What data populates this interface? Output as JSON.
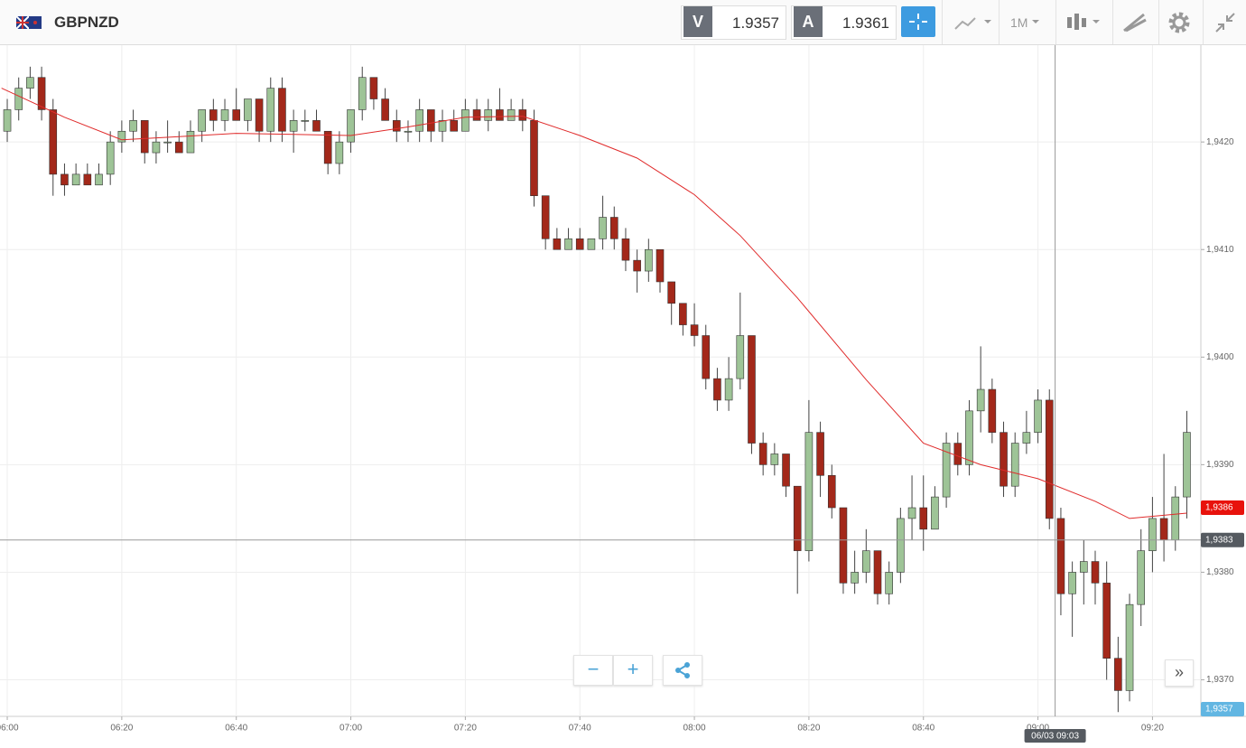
{
  "toolbar": {
    "symbol": "GBPNZD",
    "bid_label": "V",
    "bid": "1.9357",
    "ask_label": "A",
    "ask": "1.9361",
    "timeframe": "1M"
  },
  "chart_data": {
    "type": "candlestick",
    "xlim": [
      "05:58:44",
      "09:28:27"
    ],
    "xticks": [
      "06:00",
      "06:20",
      "06:40",
      "07:00",
      "07:20",
      "07:40",
      "08:00",
      "08:20",
      "08:40",
      "09:00",
      "09:20"
    ],
    "ylim": [
      1.93666,
      1.9429
    ],
    "yticks": [
      {
        "value": 1.937,
        "label": "1,9370"
      },
      {
        "value": 1.938,
        "label": "1,9380"
      },
      {
        "value": 1.939,
        "label": "1,9390"
      },
      {
        "value": 1.94,
        "label": "1,9400"
      },
      {
        "value": 1.941,
        "label": "1,9410"
      },
      {
        "value": 1.942,
        "label": "1,9420"
      }
    ],
    "grid": true,
    "up_color": "#9ec497",
    "down_color": "#a3281a",
    "ma_color": "#e02b2b",
    "x": [
      "06:00",
      "06:02",
      "06:04",
      "06:06",
      "06:08",
      "06:10",
      "06:12",
      "06:14",
      "06:16",
      "06:18",
      "06:20",
      "06:22",
      "06:24",
      "06:26",
      "06:28",
      "06:30",
      "06:32",
      "06:34",
      "06:36",
      "06:38",
      "06:40",
      "06:42",
      "06:44",
      "06:46",
      "06:48",
      "06:50",
      "06:52",
      "06:54",
      "06:56",
      "06:58",
      "07:00",
      "07:02",
      "07:04",
      "07:06",
      "07:08",
      "07:10",
      "07:12",
      "07:14",
      "07:16",
      "07:18",
      "07:20",
      "07:22",
      "07:24",
      "07:26",
      "07:28",
      "07:30",
      "07:32",
      "07:34",
      "07:36",
      "07:38",
      "07:40",
      "07:42",
      "07:44",
      "07:46",
      "07:48",
      "07:50",
      "07:52",
      "07:54",
      "07:56",
      "07:58",
      "08:00",
      "08:02",
      "08:04",
      "08:06",
      "08:08",
      "08:10",
      "08:12",
      "08:14",
      "08:16",
      "08:18",
      "08:20",
      "08:22",
      "08:24",
      "08:26",
      "08:28",
      "08:30",
      "08:32",
      "08:34",
      "08:36",
      "08:38",
      "08:40",
      "08:42",
      "08:44",
      "08:46",
      "08:48",
      "08:50",
      "08:52",
      "08:54",
      "08:56",
      "08:58",
      "09:00",
      "09:02",
      "09:04",
      "09:06",
      "09:08",
      "09:10",
      "09:12",
      "09:14",
      "09:16",
      "09:18",
      "09:20",
      "09:22",
      "09:24",
      "09:26"
    ],
    "candles": [
      [
        1.9421,
        1.9424,
        1.942,
        1.9423
      ],
      [
        1.9423,
        1.9426,
        1.9422,
        1.9425
      ],
      [
        1.9425,
        1.9427,
        1.9424,
        1.9426
      ],
      [
        1.9426,
        1.9427,
        1.9422,
        1.9423
      ],
      [
        1.9423,
        1.9424,
        1.9415,
        1.9417
      ],
      [
        1.9417,
        1.9418,
        1.9415,
        1.9416
      ],
      [
        1.9416,
        1.9418,
        1.9416,
        1.9417
      ],
      [
        1.9417,
        1.9418,
        1.9416,
        1.9416
      ],
      [
        1.9416,
        1.9418,
        1.9416,
        1.9417
      ],
      [
        1.9417,
        1.9421,
        1.9416,
        1.942
      ],
      [
        1.942,
        1.9422,
        1.9419,
        1.9421
      ],
      [
        1.9421,
        1.9423,
        1.942,
        1.9422
      ],
      [
        1.9422,
        1.9422,
        1.9418,
        1.9419
      ],
      [
        1.9419,
        1.9421,
        1.9418,
        1.942
      ],
      [
        1.942,
        1.9422,
        1.9419,
        1.942
      ],
      [
        1.942,
        1.9421,
        1.9419,
        1.9419
      ],
      [
        1.9419,
        1.9422,
        1.9419,
        1.9421
      ],
      [
        1.9421,
        1.9423,
        1.942,
        1.9423
      ],
      [
        1.9423,
        1.9424,
        1.9421,
        1.9422
      ],
      [
        1.9422,
        1.9424,
        1.9421,
        1.9423
      ],
      [
        1.9423,
        1.9425,
        1.9422,
        1.9422
      ],
      [
        1.9422,
        1.9424,
        1.9421,
        1.9424
      ],
      [
        1.9424,
        1.9424,
        1.942,
        1.9421
      ],
      [
        1.9421,
        1.9426,
        1.942,
        1.9425
      ],
      [
        1.9425,
        1.9426,
        1.942,
        1.9421
      ],
      [
        1.9421,
        1.9423,
        1.9419,
        1.9422
      ],
      [
        1.9422,
        1.9423,
        1.9421,
        1.9422
      ],
      [
        1.9422,
        1.9423,
        1.9421,
        1.9421
      ],
      [
        1.9421,
        1.9421,
        1.9417,
        1.9418
      ],
      [
        1.9418,
        1.9421,
        1.9417,
        1.942
      ],
      [
        1.942,
        1.9423,
        1.9419,
        1.9423
      ],
      [
        1.9423,
        1.9427,
        1.9422,
        1.9426
      ],
      [
        1.9426,
        1.9426,
        1.9423,
        1.9424
      ],
      [
        1.9424,
        1.9425,
        1.9422,
        1.9422
      ],
      [
        1.9422,
        1.9423,
        1.942,
        1.9421
      ],
      [
        1.9421,
        1.9422,
        1.942,
        1.9421
      ],
      [
        1.9421,
        1.9424,
        1.942,
        1.9423
      ],
      [
        1.9423,
        1.9423,
        1.942,
        1.9421
      ],
      [
        1.9421,
        1.9423,
        1.942,
        1.9422
      ],
      [
        1.9422,
        1.9423,
        1.9421,
        1.9421
      ],
      [
        1.9421,
        1.9424,
        1.9421,
        1.9423
      ],
      [
        1.9423,
        1.9424,
        1.9422,
        1.9422
      ],
      [
        1.9422,
        1.9424,
        1.9421,
        1.9423
      ],
      [
        1.9423,
        1.9425,
        1.9422,
        1.9422
      ],
      [
        1.9422,
        1.9424,
        1.9422,
        1.9423
      ],
      [
        1.9423,
        1.9424,
        1.9421,
        1.9422
      ],
      [
        1.9422,
        1.9423,
        1.9414,
        1.9415
      ],
      [
        1.9415,
        1.9415,
        1.941,
        1.9411
      ],
      [
        1.9411,
        1.9412,
        1.941,
        1.941
      ],
      [
        1.941,
        1.9412,
        1.941,
        1.9411
      ],
      [
        1.9411,
        1.9412,
        1.941,
        1.941
      ],
      [
        1.941,
        1.9411,
        1.941,
        1.9411
      ],
      [
        1.9411,
        1.9415,
        1.941,
        1.9413
      ],
      [
        1.9413,
        1.9414,
        1.941,
        1.9411
      ],
      [
        1.9411,
        1.9412,
        1.9408,
        1.9409
      ],
      [
        1.9409,
        1.941,
        1.9406,
        1.9408
      ],
      [
        1.9408,
        1.9411,
        1.9407,
        1.941
      ],
      [
        1.941,
        1.941,
        1.9406,
        1.9407
      ],
      [
        1.9407,
        1.9407,
        1.9403,
        1.9405
      ],
      [
        1.9405,
        1.9405,
        1.9402,
        1.9403
      ],
      [
        1.9403,
        1.9405,
        1.9401,
        1.9402
      ],
      [
        1.9402,
        1.9403,
        1.9397,
        1.9398
      ],
      [
        1.9398,
        1.9399,
        1.9395,
        1.9396
      ],
      [
        1.9396,
        1.94,
        1.9395,
        1.9398
      ],
      [
        1.9398,
        1.9406,
        1.9397,
        1.9402
      ],
      [
        1.9402,
        1.9402,
        1.9391,
        1.9392
      ],
      [
        1.9392,
        1.9393,
        1.9389,
        1.939
      ],
      [
        1.939,
        1.9392,
        1.9389,
        1.9391
      ],
      [
        1.9391,
        1.9391,
        1.9387,
        1.9388
      ],
      [
        1.9388,
        1.9388,
        1.9378,
        1.9382
      ],
      [
        1.9382,
        1.9396,
        1.9381,
        1.9393
      ],
      [
        1.9393,
        1.9394,
        1.9387,
        1.9389
      ],
      [
        1.9389,
        1.939,
        1.9385,
        1.9386
      ],
      [
        1.9386,
        1.9386,
        1.9378,
        1.9379
      ],
      [
        1.9379,
        1.9382,
        1.9378,
        1.938
      ],
      [
        1.938,
        1.9384,
        1.9379,
        1.9382
      ],
      [
        1.9382,
        1.9382,
        1.9377,
        1.9378
      ],
      [
        1.9378,
        1.9381,
        1.9377,
        1.938
      ],
      [
        1.938,
        1.9386,
        1.9379,
        1.9385
      ],
      [
        1.9385,
        1.9389,
        1.9383,
        1.9386
      ],
      [
        1.9386,
        1.9389,
        1.9382,
        1.9384
      ],
      [
        1.9384,
        1.9388,
        1.9384,
        1.9387
      ],
      [
        1.9387,
        1.9393,
        1.9386,
        1.9392
      ],
      [
        1.9392,
        1.9393,
        1.9389,
        1.939
      ],
      [
        1.939,
        1.9396,
        1.9389,
        1.9395
      ],
      [
        1.9395,
        1.9401,
        1.9393,
        1.9397
      ],
      [
        1.9397,
        1.9398,
        1.9392,
        1.9393
      ],
      [
        1.9393,
        1.9394,
        1.9387,
        1.9388
      ],
      [
        1.9388,
        1.9393,
        1.9387,
        1.9392
      ],
      [
        1.9392,
        1.9395,
        1.9391,
        1.9393
      ],
      [
        1.9393,
        1.9397,
        1.9392,
        1.9396
      ],
      [
        1.9396,
        1.9397,
        1.9384,
        1.9385
      ],
      [
        1.9385,
        1.9386,
        1.9376,
        1.9378
      ],
      [
        1.9378,
        1.9381,
        1.9374,
        1.938
      ],
      [
        1.938,
        1.9383,
        1.9377,
        1.9381
      ],
      [
        1.9381,
        1.9382,
        1.9377,
        1.9379
      ],
      [
        1.9379,
        1.9381,
        1.937,
        1.9372
      ],
      [
        1.9372,
        1.9374,
        1.9367,
        1.9369
      ],
      [
        1.9369,
        1.9378,
        1.9368,
        1.9377
      ],
      [
        1.9377,
        1.9384,
        1.9375,
        1.9382
      ],
      [
        1.9382,
        1.9387,
        1.938,
        1.9385
      ],
      [
        1.9385,
        1.9391,
        1.9381,
        1.9383
      ],
      [
        1.9383,
        1.9388,
        1.9382,
        1.9387
      ],
      [
        1.9387,
        1.9395,
        1.9385,
        1.9393
      ]
    ],
    "ma": {
      "x": [
        "05:59",
        "06:10",
        "06:20",
        "06:30",
        "06:40",
        "06:50",
        "07:00",
        "07:10",
        "07:20",
        "07:30",
        "07:40",
        "07:50",
        "08:00",
        "08:08",
        "08:18",
        "08:30",
        "08:40",
        "08:50",
        "09:00",
        "09:10",
        "09:16",
        "09:26"
      ],
      "values": [
        1.9425,
        1.94223,
        1.94202,
        1.94205,
        1.94208,
        1.94207,
        1.94206,
        1.94214,
        1.94223,
        1.94224,
        1.94206,
        1.94185,
        1.94151,
        1.94113,
        1.94055,
        1.93979,
        1.9392,
        1.939,
        1.93887,
        1.93866,
        1.9385,
        1.93855
      ]
    },
    "price_tags": [
      {
        "value": 1.9386,
        "label": "1,9386",
        "color": "#e8120c"
      },
      {
        "value": 1.9357,
        "label": "1,9357",
        "color": "#62b6e2"
      }
    ],
    "crosshair": {
      "x": {
        "value": "09:03",
        "label": "06/03 09:03"
      },
      "y": {
        "value": 1.9383,
        "label": "1,9383"
      }
    }
  }
}
